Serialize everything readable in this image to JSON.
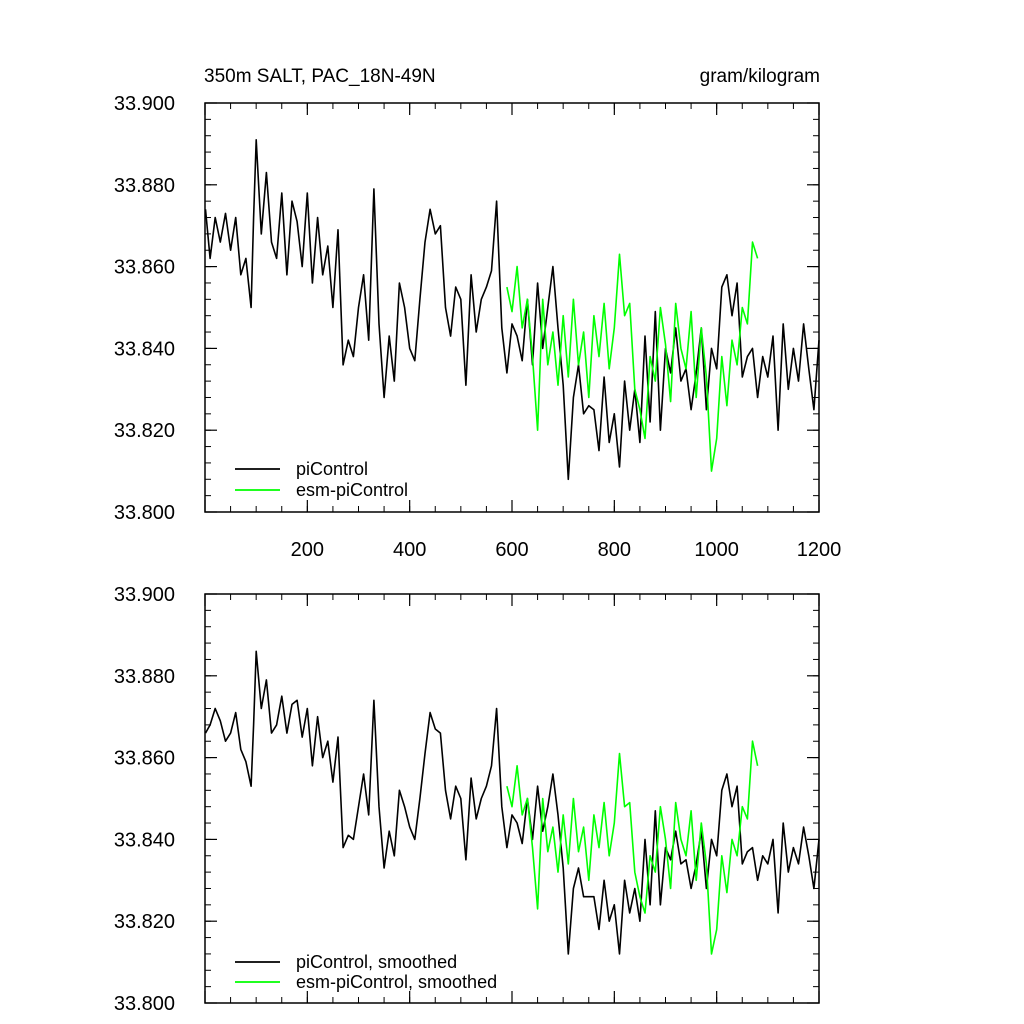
{
  "chart_data": [
    {
      "type": "line",
      "title": "350m SALT, PAC_18N-49N",
      "units": "gram/kilogram",
      "xlim": [
        0,
        1200
      ],
      "ylim": [
        33.8,
        33.9
      ],
      "xticks": [
        200,
        400,
        600,
        800,
        1000,
        1200
      ],
      "xtick_labels": [
        "200",
        "400",
        "600",
        "800",
        "1000",
        "1200"
      ],
      "yticks": [
        33.8,
        33.82,
        33.84,
        33.86,
        33.88,
        33.9
      ],
      "ytick_labels": [
        "33.800",
        "33.820",
        "33.840",
        "33.860",
        "33.880",
        "33.900"
      ],
      "legend": "bottom-left",
      "series": [
        {
          "name": "piControl",
          "color": "#000000",
          "x": [
            1,
            10,
            20,
            30,
            40,
            50,
            60,
            70,
            80,
            90,
            95,
            100,
            110,
            120,
            130,
            140,
            150,
            160,
            170,
            180,
            190,
            200,
            210,
            220,
            230,
            240,
            250,
            260,
            270,
            280,
            290,
            300,
            310,
            320,
            330,
            340,
            350,
            360,
            370,
            380,
            390,
            400,
            410,
            420,
            430,
            440,
            450,
            460,
            470,
            480,
            490,
            500,
            510,
            520,
            530,
            540,
            550,
            560,
            570,
            580,
            590,
            600,
            610,
            620,
            630,
            640,
            650,
            660,
            670,
            680,
            690,
            700,
            710,
            720,
            730,
            740,
            750,
            760,
            770,
            780,
            790,
            800,
            810,
            820,
            830,
            840,
            850,
            860,
            870,
            880,
            890,
            900,
            910,
            920,
            930,
            940,
            950,
            960,
            970,
            980,
            990,
            1000,
            1010,
            1020,
            1030,
            1040,
            1050,
            1060,
            1070,
            1080,
            1090,
            1100,
            1110,
            1120,
            1130,
            1140,
            1150,
            1160,
            1170,
            1180,
            1190,
            1200
          ],
          "y": [
            33.874,
            33.862,
            33.872,
            33.866,
            33.873,
            33.864,
            33.872,
            33.858,
            33.862,
            33.85,
            33.872,
            33.891,
            33.868,
            33.883,
            33.866,
            33.862,
            33.878,
            33.858,
            33.876,
            33.871,
            33.86,
            33.878,
            33.856,
            33.872,
            33.858,
            33.865,
            33.85,
            33.869,
            33.836,
            33.842,
            33.838,
            33.85,
            33.858,
            33.842,
            33.879,
            33.846,
            33.828,
            33.843,
            33.832,
            33.856,
            33.85,
            33.84,
            33.837,
            33.852,
            33.866,
            33.874,
            33.868,
            33.87,
            33.85,
            33.843,
            33.855,
            33.852,
            33.831,
            33.858,
            33.844,
            33.852,
            33.855,
            33.859,
            33.876,
            33.845,
            33.834,
            33.846,
            33.843,
            33.837,
            33.852,
            33.836,
            33.856,
            33.84,
            33.85,
            33.86,
            33.845,
            33.831,
            33.808,
            33.828,
            33.836,
            33.824,
            33.826,
            33.825,
            33.815,
            33.833,
            33.817,
            33.824,
            33.811,
            33.832,
            33.82,
            33.83,
            33.817,
            33.843,
            33.822,
            33.849,
            33.82,
            33.84,
            33.834,
            33.845,
            33.832,
            33.835,
            33.825,
            33.834,
            33.845,
            33.825,
            33.84,
            33.835,
            33.855,
            33.858,
            33.848,
            33.856,
            33.833,
            33.838,
            33.84,
            33.828,
            33.838,
            33.833,
            33.843,
            33.82,
            33.846,
            33.83,
            33.84,
            33.832,
            33.846,
            33.835,
            33.825,
            33.842
          ]
        },
        {
          "name": "esm-piControl",
          "color": "#00ff00",
          "x": [
            590,
            600,
            610,
            620,
            630,
            640,
            650,
            660,
            670,
            680,
            690,
            700,
            710,
            720,
            730,
            740,
            750,
            760,
            770,
            780,
            790,
            800,
            810,
            820,
            830,
            840,
            850,
            860,
            870,
            880,
            890,
            900,
            910,
            920,
            930,
            940,
            950,
            960,
            970,
            980,
            990,
            1000,
            1010,
            1020,
            1030,
            1040,
            1050,
            1060,
            1070,
            1080
          ],
          "y": [
            33.855,
            33.849,
            33.86,
            33.845,
            33.852,
            33.838,
            33.82,
            33.852,
            33.836,
            33.844,
            33.831,
            33.848,
            33.833,
            33.852,
            33.836,
            33.844,
            33.828,
            33.848,
            33.838,
            33.851,
            33.835,
            33.845,
            33.863,
            33.848,
            33.851,
            33.83,
            33.825,
            33.818,
            33.838,
            33.832,
            33.85,
            33.841,
            33.827,
            33.851,
            33.84,
            33.835,
            33.849,
            33.828,
            33.845,
            33.833,
            33.81,
            33.818,
            33.838,
            33.826,
            33.842,
            33.836,
            33.85,
            33.846,
            33.866,
            33.862
          ]
        }
      ]
    },
    {
      "type": "line",
      "xlim": [
        0,
        1200
      ],
      "ylim": [
        33.8,
        33.9
      ],
      "xticks": [
        200,
        400,
        600,
        800,
        1000,
        1200
      ],
      "yticks": [
        33.8,
        33.82,
        33.84,
        33.86,
        33.88,
        33.9
      ],
      "ytick_labels": [
        "33.800",
        "33.820",
        "33.840",
        "33.860",
        "33.880",
        "33.900"
      ],
      "legend": "bottom-left",
      "series": [
        {
          "name": "piControl, smoothed",
          "color": "#000000",
          "x": [
            1,
            10,
            20,
            30,
            40,
            50,
            60,
            70,
            80,
            90,
            95,
            100,
            110,
            120,
            130,
            140,
            150,
            160,
            170,
            180,
            190,
            200,
            210,
            220,
            230,
            240,
            250,
            260,
            270,
            280,
            290,
            300,
            310,
            320,
            330,
            340,
            350,
            360,
            370,
            380,
            390,
            400,
            410,
            420,
            430,
            440,
            450,
            460,
            470,
            480,
            490,
            500,
            510,
            520,
            530,
            540,
            550,
            560,
            570,
            580,
            590,
            600,
            610,
            620,
            630,
            640,
            650,
            660,
            670,
            680,
            690,
            700,
            710,
            720,
            730,
            740,
            750,
            760,
            770,
            780,
            790,
            800,
            810,
            820,
            830,
            840,
            850,
            860,
            870,
            880,
            890,
            900,
            910,
            920,
            930,
            940,
            950,
            960,
            970,
            980,
            990,
            1000,
            1010,
            1020,
            1030,
            1040,
            1050,
            1060,
            1070,
            1080,
            1090,
            1100,
            1110,
            1120,
            1130,
            1140,
            1150,
            1160,
            1170,
            1180,
            1190,
            1200
          ],
          "y": [
            33.866,
            33.868,
            33.872,
            33.869,
            33.864,
            33.866,
            33.871,
            33.862,
            33.859,
            33.853,
            33.868,
            33.886,
            33.872,
            33.879,
            33.866,
            33.868,
            33.875,
            33.866,
            33.873,
            33.874,
            33.865,
            33.872,
            33.858,
            33.87,
            33.86,
            33.864,
            33.854,
            33.865,
            33.838,
            33.841,
            33.84,
            33.848,
            33.856,
            33.846,
            33.874,
            33.848,
            33.833,
            33.842,
            33.836,
            33.852,
            33.848,
            33.843,
            33.84,
            33.85,
            33.861,
            33.871,
            33.867,
            33.866,
            33.852,
            33.845,
            33.853,
            33.85,
            33.835,
            33.855,
            33.845,
            33.85,
            33.853,
            33.858,
            33.872,
            33.848,
            33.838,
            33.846,
            33.844,
            33.839,
            33.85,
            33.84,
            33.853,
            33.842,
            33.848,
            33.856,
            33.846,
            33.833,
            33.812,
            33.828,
            33.833,
            33.826,
            33.826,
            33.826,
            33.818,
            33.83,
            33.82,
            33.824,
            33.812,
            33.83,
            33.822,
            33.828,
            33.82,
            33.84,
            33.824,
            33.847,
            33.824,
            33.838,
            33.835,
            33.842,
            33.834,
            33.835,
            33.828,
            33.834,
            33.842,
            33.828,
            33.84,
            33.836,
            33.852,
            33.856,
            33.848,
            33.853,
            33.834,
            33.837,
            33.838,
            33.83,
            33.836,
            33.834,
            33.84,
            33.822,
            33.844,
            33.832,
            33.838,
            33.834,
            33.843,
            33.836,
            33.828,
            33.84
          ]
        },
        {
          "name": "esm-piControl, smoothed",
          "color": "#00ff00",
          "x": [
            590,
            600,
            610,
            620,
            630,
            640,
            650,
            660,
            670,
            680,
            690,
            700,
            710,
            720,
            730,
            740,
            750,
            760,
            770,
            780,
            790,
            800,
            810,
            820,
            830,
            840,
            850,
            860,
            870,
            880,
            890,
            900,
            910,
            920,
            930,
            940,
            950,
            960,
            970,
            980,
            990,
            1000,
            1010,
            1020,
            1030,
            1040,
            1050,
            1060,
            1070,
            1080
          ],
          "y": [
            33.853,
            33.848,
            33.858,
            33.846,
            33.85,
            33.838,
            33.823,
            33.85,
            33.837,
            33.843,
            33.832,
            33.846,
            33.834,
            33.85,
            33.837,
            33.843,
            33.83,
            33.846,
            33.838,
            33.849,
            33.836,
            33.844,
            33.861,
            33.848,
            33.849,
            33.832,
            33.826,
            33.822,
            33.836,
            33.832,
            33.848,
            33.84,
            33.828,
            33.849,
            33.84,
            33.836,
            33.847,
            33.83,
            33.844,
            33.834,
            33.812,
            33.818,
            33.836,
            33.827,
            33.84,
            33.836,
            33.848,
            33.845,
            33.864,
            33.858
          ]
        }
      ]
    }
  ]
}
